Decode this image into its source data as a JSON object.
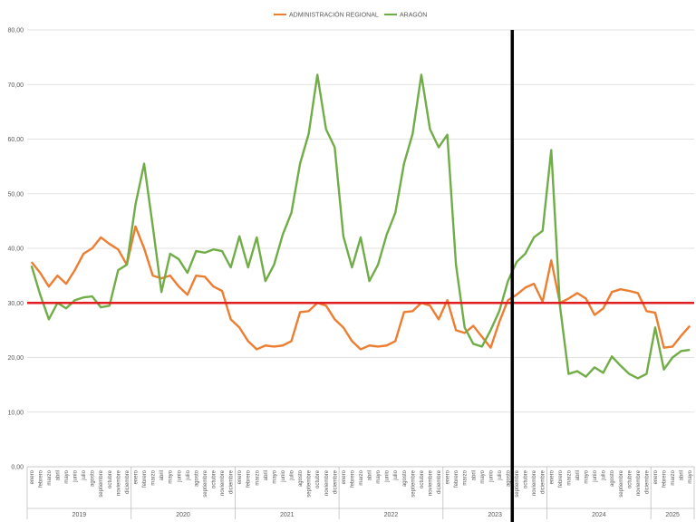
{
  "chart_data": {
    "type": "line",
    "title": "",
    "xlabel": "",
    "ylabel": "",
    "ylim": [
      0,
      80
    ],
    "y_ticks": [
      "0,00",
      "10,00",
      "20,00",
      "30,00",
      "40,00",
      "50,00",
      "60,00",
      "70,00",
      "80,00"
    ],
    "grid": "horizontal",
    "legend_position": "top-center",
    "reference_line": {
      "value": 30,
      "color": "#e02020"
    },
    "vertical_marker": {
      "after_month": "agosto 2023",
      "color": "#000000"
    },
    "years": [
      {
        "label": "2019",
        "months": [
          "enero",
          "febrero",
          "marzo",
          "abril",
          "mayo",
          "junio",
          "julio",
          "agosto",
          "septiembre",
          "octubre",
          "noviembre",
          "diciembre"
        ]
      },
      {
        "label": "2020",
        "months": [
          "enero",
          "febrero",
          "marzo",
          "abril",
          "mayo",
          "junio",
          "julio",
          "agosto",
          "septiembre",
          "octubre",
          "noviembre",
          "diciembre"
        ]
      },
      {
        "label": "2021",
        "months": [
          "enero",
          "febrero",
          "marzo",
          "abril",
          "mayo",
          "junio",
          "julio",
          "agosto",
          "septiembre",
          "octubre",
          "noviembre",
          "diciembre"
        ]
      },
      {
        "label": "2022",
        "months": [
          "enero",
          "febrero",
          "marzo",
          "abril",
          "mayo",
          "junio",
          "julio",
          "agosto",
          "septiembre",
          "octubre",
          "noviembre",
          "diciembre"
        ]
      },
      {
        "label": "2023",
        "months": [
          "enero",
          "febrero",
          "marzo",
          "abril",
          "mayo",
          "junio",
          "julio",
          "agosto",
          "septiembre",
          "octubre",
          "noviembre",
          "diciembre"
        ]
      },
      {
        "label": "2024",
        "months": [
          "enero",
          "febrero",
          "marzo",
          "abril",
          "mayo",
          "junio",
          "julio",
          "agosto",
          "septiembre",
          "octubre",
          "noviembre",
          "diciembre"
        ]
      },
      {
        "label": "2025",
        "months": [
          "enero",
          "febrero",
          "marzo",
          "abril",
          "mayo"
        ]
      }
    ],
    "series": [
      {
        "name": "ADMINISTRACIÓN REGIONAL",
        "color": "#ed7d31",
        "values": [
          37.5,
          35.5,
          33,
          35,
          33.5,
          36,
          39,
          40,
          42,
          40.8,
          39.8,
          37,
          44,
          40,
          35,
          34.5,
          35,
          33,
          31.5,
          35,
          34.8,
          33,
          32.2,
          27,
          25.5,
          23,
          21.5,
          22.2,
          22,
          22.2,
          23,
          28.3,
          28.5,
          30,
          29.5,
          27,
          25.5,
          23,
          21.5,
          22.2,
          22,
          22.2,
          23,
          28.3,
          28.5,
          30,
          29.5,
          27,
          30.5,
          25,
          24.5,
          25.8,
          23.8,
          21.8,
          26.5,
          30.5,
          31.5,
          32.8,
          33.5,
          30.2,
          37.8,
          30,
          30.8,
          31.8,
          30.8,
          27.8,
          29,
          32,
          32.5,
          32.2,
          31.8,
          28.5,
          28.2,
          21.8,
          22,
          24,
          25.8
        ]
      },
      {
        "name": "ARAGÓN",
        "color": "#70ad47",
        "values": [
          36.8,
          31.5,
          27,
          30,
          29,
          30.5,
          31,
          31.2,
          29.2,
          29.5,
          36,
          37,
          48,
          55.5,
          44,
          32,
          39,
          38,
          35.5,
          39.5,
          39.2,
          39.8,
          39.5,
          36.5,
          42.2,
          36.5,
          42,
          34,
          37,
          42.5,
          46.5,
          55.5,
          61,
          71.8,
          61.8,
          58.5,
          42.2,
          36.5,
          42,
          34,
          37,
          42.5,
          46.5,
          55.5,
          61,
          71.8,
          61.8,
          58.5,
          60.8,
          37,
          25.5,
          22.5,
          22,
          25,
          28.5,
          34,
          37.5,
          39,
          42,
          43.2,
          58,
          29.5,
          17,
          17.5,
          16.5,
          18.2,
          17.2,
          20.2,
          18.5,
          17,
          16.2,
          17,
          25.5,
          17.8,
          20,
          21.2,
          21.4
        ]
      }
    ]
  }
}
